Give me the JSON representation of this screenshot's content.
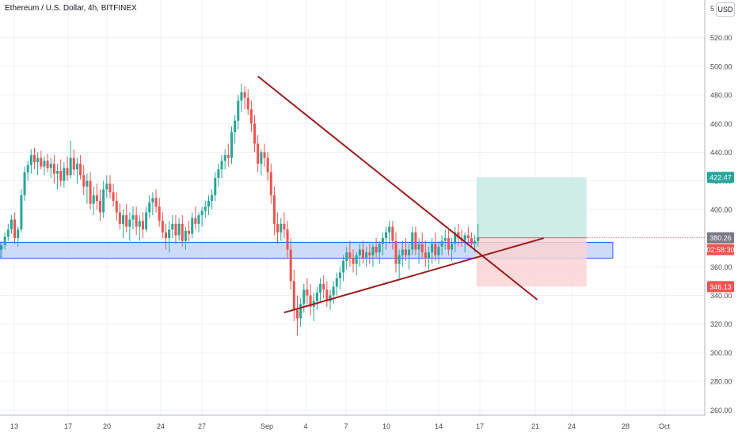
{
  "header": {
    "title": "Ethereum / U.S. Dollar, 4h, BITFINEX",
    "currency": "USD"
  },
  "colors": {
    "up": "#26a69a",
    "down": "#ef5350",
    "trendline": "#9c1b1b",
    "support_zone_fill": "#bbd0f5",
    "support_zone_stroke": "#2962ff",
    "target_zone": "#c9ebe3",
    "stop_zone": "#f9d3d3",
    "grid": "#eef0f3",
    "axis_text": "#4a4a4a",
    "last_price_bg": "#787b86",
    "countdown_bg": "#ef5350",
    "target_label_bg": "#26a69a",
    "stop_label_bg": "#ef5350"
  },
  "chart_data": {
    "type": "candlestick",
    "title": "Ethereum / U.S. Dollar, 4h, BITFINEX",
    "y_ticks": [
      "260.00",
      "280.00",
      "300.00",
      "320.00",
      "340.00",
      "360.00",
      "380.00",
      "400.00",
      "420.00",
      "440.00",
      "460.00",
      "480.00",
      "500.00",
      "520.00"
    ],
    "y_ticks_values": [
      260,
      280,
      300,
      320,
      340,
      360,
      380,
      400,
      420,
      440,
      460,
      480,
      500,
      520
    ],
    "top_tick_label": "5",
    "ylim": [
      256,
      540
    ],
    "x_ticks": [
      "13",
      "17",
      "20",
      "24",
      "27",
      "Sep",
      "4",
      "7",
      "10",
      "14",
      "17",
      "21",
      "24",
      "28",
      "Oct"
    ],
    "candle_count": 146,
    "price_labels": {
      "target": "422.47",
      "last": "380.26",
      "countdown": "02:58:30",
      "stop": "346.13"
    },
    "price_values": {
      "target": 422.47,
      "last": 380.26,
      "stop": 346.13
    },
    "support_zone": {
      "top": 377,
      "bottom": 366,
      "from_candle": 0,
      "to_candle": 186
    },
    "position": {
      "entry": 380.26,
      "target": 422.47,
      "stop": 346.13,
      "from_candle": 145,
      "to_candle": 178
    },
    "trendlines": [
      {
        "name": "descending",
        "from": {
          "candle": 78,
          "price": 493
        },
        "to": {
          "candle": 163,
          "price": 337
        }
      },
      {
        "name": "ascending",
        "from": {
          "candle": 86,
          "price": 328
        },
        "to": {
          "candle": 165,
          "price": 380
        }
      }
    ],
    "ohlc": [
      [
        372,
        378,
        366,
        375
      ],
      [
        375,
        384,
        372,
        381
      ],
      [
        381,
        390,
        378,
        386
      ],
      [
        386,
        396,
        383,
        393
      ],
      [
        393,
        398,
        376,
        380
      ],
      [
        380,
        388,
        374,
        386
      ],
      [
        386,
        414,
        384,
        410
      ],
      [
        410,
        430,
        406,
        426
      ],
      [
        426,
        434,
        420,
        431
      ],
      [
        431,
        442,
        425,
        438
      ],
      [
        438,
        443,
        428,
        433
      ],
      [
        433,
        440,
        424,
        436
      ],
      [
        436,
        441,
        428,
        430
      ],
      [
        430,
        437,
        424,
        434
      ],
      [
        434,
        439,
        426,
        429
      ],
      [
        429,
        436,
        422,
        432
      ],
      [
        432,
        438,
        418,
        425
      ],
      [
        425,
        432,
        414,
        427
      ],
      [
        427,
        435,
        416,
        420
      ],
      [
        420,
        433,
        415,
        429
      ],
      [
        429,
        437,
        420,
        424
      ],
      [
        424,
        448,
        422,
        436
      ],
      [
        436,
        442,
        424,
        428
      ],
      [
        428,
        436,
        418,
        432
      ],
      [
        432,
        438,
        421,
        424
      ],
      [
        424,
        431,
        410,
        416
      ],
      [
        416,
        425,
        404,
        420
      ],
      [
        420,
        426,
        400,
        404
      ],
      [
        404,
        416,
        396,
        410
      ],
      [
        410,
        418,
        400,
        406
      ],
      [
        406,
        414,
        392,
        398
      ],
      [
        398,
        420,
        394,
        414
      ],
      [
        414,
        424,
        408,
        418
      ],
      [
        418,
        424,
        408,
        412
      ],
      [
        412,
        418,
        402,
        406
      ],
      [
        406,
        412,
        392,
        398
      ],
      [
        398,
        404,
        386,
        390
      ],
      [
        390,
        400,
        380,
        396
      ],
      [
        396,
        404,
        384,
        388
      ],
      [
        388,
        398,
        378,
        393
      ],
      [
        393,
        402,
        386,
        396
      ],
      [
        396,
        402,
        382,
        388
      ],
      [
        388,
        396,
        378,
        392
      ],
      [
        392,
        398,
        380,
        386
      ],
      [
        386,
        402,
        384,
        398
      ],
      [
        398,
        410,
        394,
        405
      ],
      [
        405,
        412,
        396,
        408
      ],
      [
        408,
        414,
        398,
        402
      ],
      [
        402,
        408,
        388,
        392
      ],
      [
        392,
        398,
        380,
        384
      ],
      [
        384,
        390,
        372,
        380
      ],
      [
        380,
        392,
        370,
        386
      ],
      [
        386,
        396,
        380,
        390
      ],
      [
        390,
        396,
        376,
        382
      ],
      [
        382,
        394,
        378,
        390
      ],
      [
        390,
        396,
        374,
        378
      ],
      [
        378,
        388,
        372,
        385
      ],
      [
        385,
        392,
        378,
        383
      ],
      [
        383,
        398,
        380,
        394
      ],
      [
        394,
        402,
        386,
        390
      ],
      [
        390,
        398,
        384,
        396
      ],
      [
        396,
        402,
        388,
        399
      ],
      [
        399,
        406,
        394,
        402
      ],
      [
        402,
        410,
        396,
        406
      ],
      [
        406,
        414,
        400,
        410
      ],
      [
        410,
        426,
        406,
        422
      ],
      [
        422,
        432,
        416,
        428
      ],
      [
        428,
        438,
        422,
        434
      ],
      [
        434,
        442,
        428,
        438
      ],
      [
        438,
        446,
        430,
        436
      ],
      [
        436,
        458,
        432,
        454
      ],
      [
        454,
        466,
        446,
        462
      ],
      [
        462,
        480,
        456,
        476
      ],
      [
        476,
        488,
        468,
        482
      ],
      [
        482,
        486,
        470,
        478
      ],
      [
        478,
        484,
        466,
        470
      ],
      [
        470,
        476,
        454,
        460
      ],
      [
        460,
        466,
        440,
        446
      ],
      [
        446,
        452,
        426,
        432
      ],
      [
        432,
        442,
        424,
        440
      ],
      [
        440,
        446,
        430,
        436
      ],
      [
        436,
        440,
        420,
        426
      ],
      [
        426,
        432,
        404,
        410
      ],
      [
        410,
        416,
        382,
        390
      ],
      [
        390,
        398,
        376,
        384
      ],
      [
        384,
        394,
        378,
        390
      ],
      [
        390,
        398,
        380,
        386
      ],
      [
        386,
        392,
        366,
        372
      ],
      [
        372,
        380,
        344,
        350
      ],
      [
        350,
        358,
        322,
        330
      ],
      [
        330,
        340,
        312,
        324
      ],
      [
        324,
        338,
        318,
        334
      ],
      [
        334,
        348,
        328,
        344
      ],
      [
        344,
        352,
        334,
        340
      ],
      [
        340,
        348,
        326,
        332
      ],
      [
        332,
        342,
        322,
        336
      ],
      [
        336,
        346,
        330,
        342
      ],
      [
        342,
        352,
        336,
        348
      ],
      [
        348,
        354,
        338,
        344
      ],
      [
        344,
        350,
        332,
        336
      ],
      [
        336,
        344,
        330,
        340
      ],
      [
        340,
        350,
        334,
        346
      ],
      [
        346,
        356,
        340,
        352
      ],
      [
        352,
        360,
        344,
        356
      ],
      [
        356,
        368,
        350,
        364
      ],
      [
        364,
        374,
        358,
        370
      ],
      [
        370,
        378,
        360,
        366
      ],
      [
        366,
        372,
        356,
        362
      ],
      [
        362,
        370,
        354,
        368
      ],
      [
        368,
        376,
        360,
        372
      ],
      [
        372,
        378,
        362,
        366
      ],
      [
        366,
        374,
        360,
        370
      ],
      [
        370,
        376,
        362,
        368
      ],
      [
        368,
        376,
        360,
        374
      ],
      [
        374,
        380,
        366,
        370
      ],
      [
        370,
        378,
        362,
        376
      ],
      [
        376,
        384,
        368,
        380
      ],
      [
        380,
        388,
        372,
        384
      ],
      [
        384,
        392,
        376,
        388
      ],
      [
        388,
        392,
        372,
        378
      ],
      [
        378,
        384,
        356,
        362
      ],
      [
        362,
        372,
        352,
        368
      ],
      [
        368,
        378,
        360,
        372
      ],
      [
        372,
        380,
        364,
        368
      ],
      [
        368,
        376,
        358,
        372
      ],
      [
        372,
        388,
        368,
        384
      ],
      [
        384,
        388,
        368,
        372
      ],
      [
        372,
        380,
        362,
        376
      ],
      [
        376,
        384,
        366,
        370
      ],
      [
        370,
        378,
        360,
        366
      ],
      [
        366,
        374,
        358,
        370
      ],
      [
        370,
        380,
        362,
        376
      ],
      [
        376,
        384,
        364,
        368
      ],
      [
        368,
        378,
        362,
        374
      ],
      [
        374,
        382,
        368,
        378
      ],
      [
        378,
        386,
        372,
        380
      ],
      [
        380,
        386,
        368,
        372
      ],
      [
        372,
        380,
        364,
        376
      ],
      [
        376,
        388,
        370,
        384
      ],
      [
        384,
        390,
        374,
        380
      ],
      [
        380,
        386,
        374,
        378
      ],
      [
        378,
        384,
        370,
        382
      ],
      [
        382,
        388,
        376,
        380
      ],
      [
        380,
        384,
        374,
        376
      ],
      [
        376,
        382,
        370,
        378
      ],
      [
        378,
        390,
        374,
        380
      ]
    ]
  }
}
